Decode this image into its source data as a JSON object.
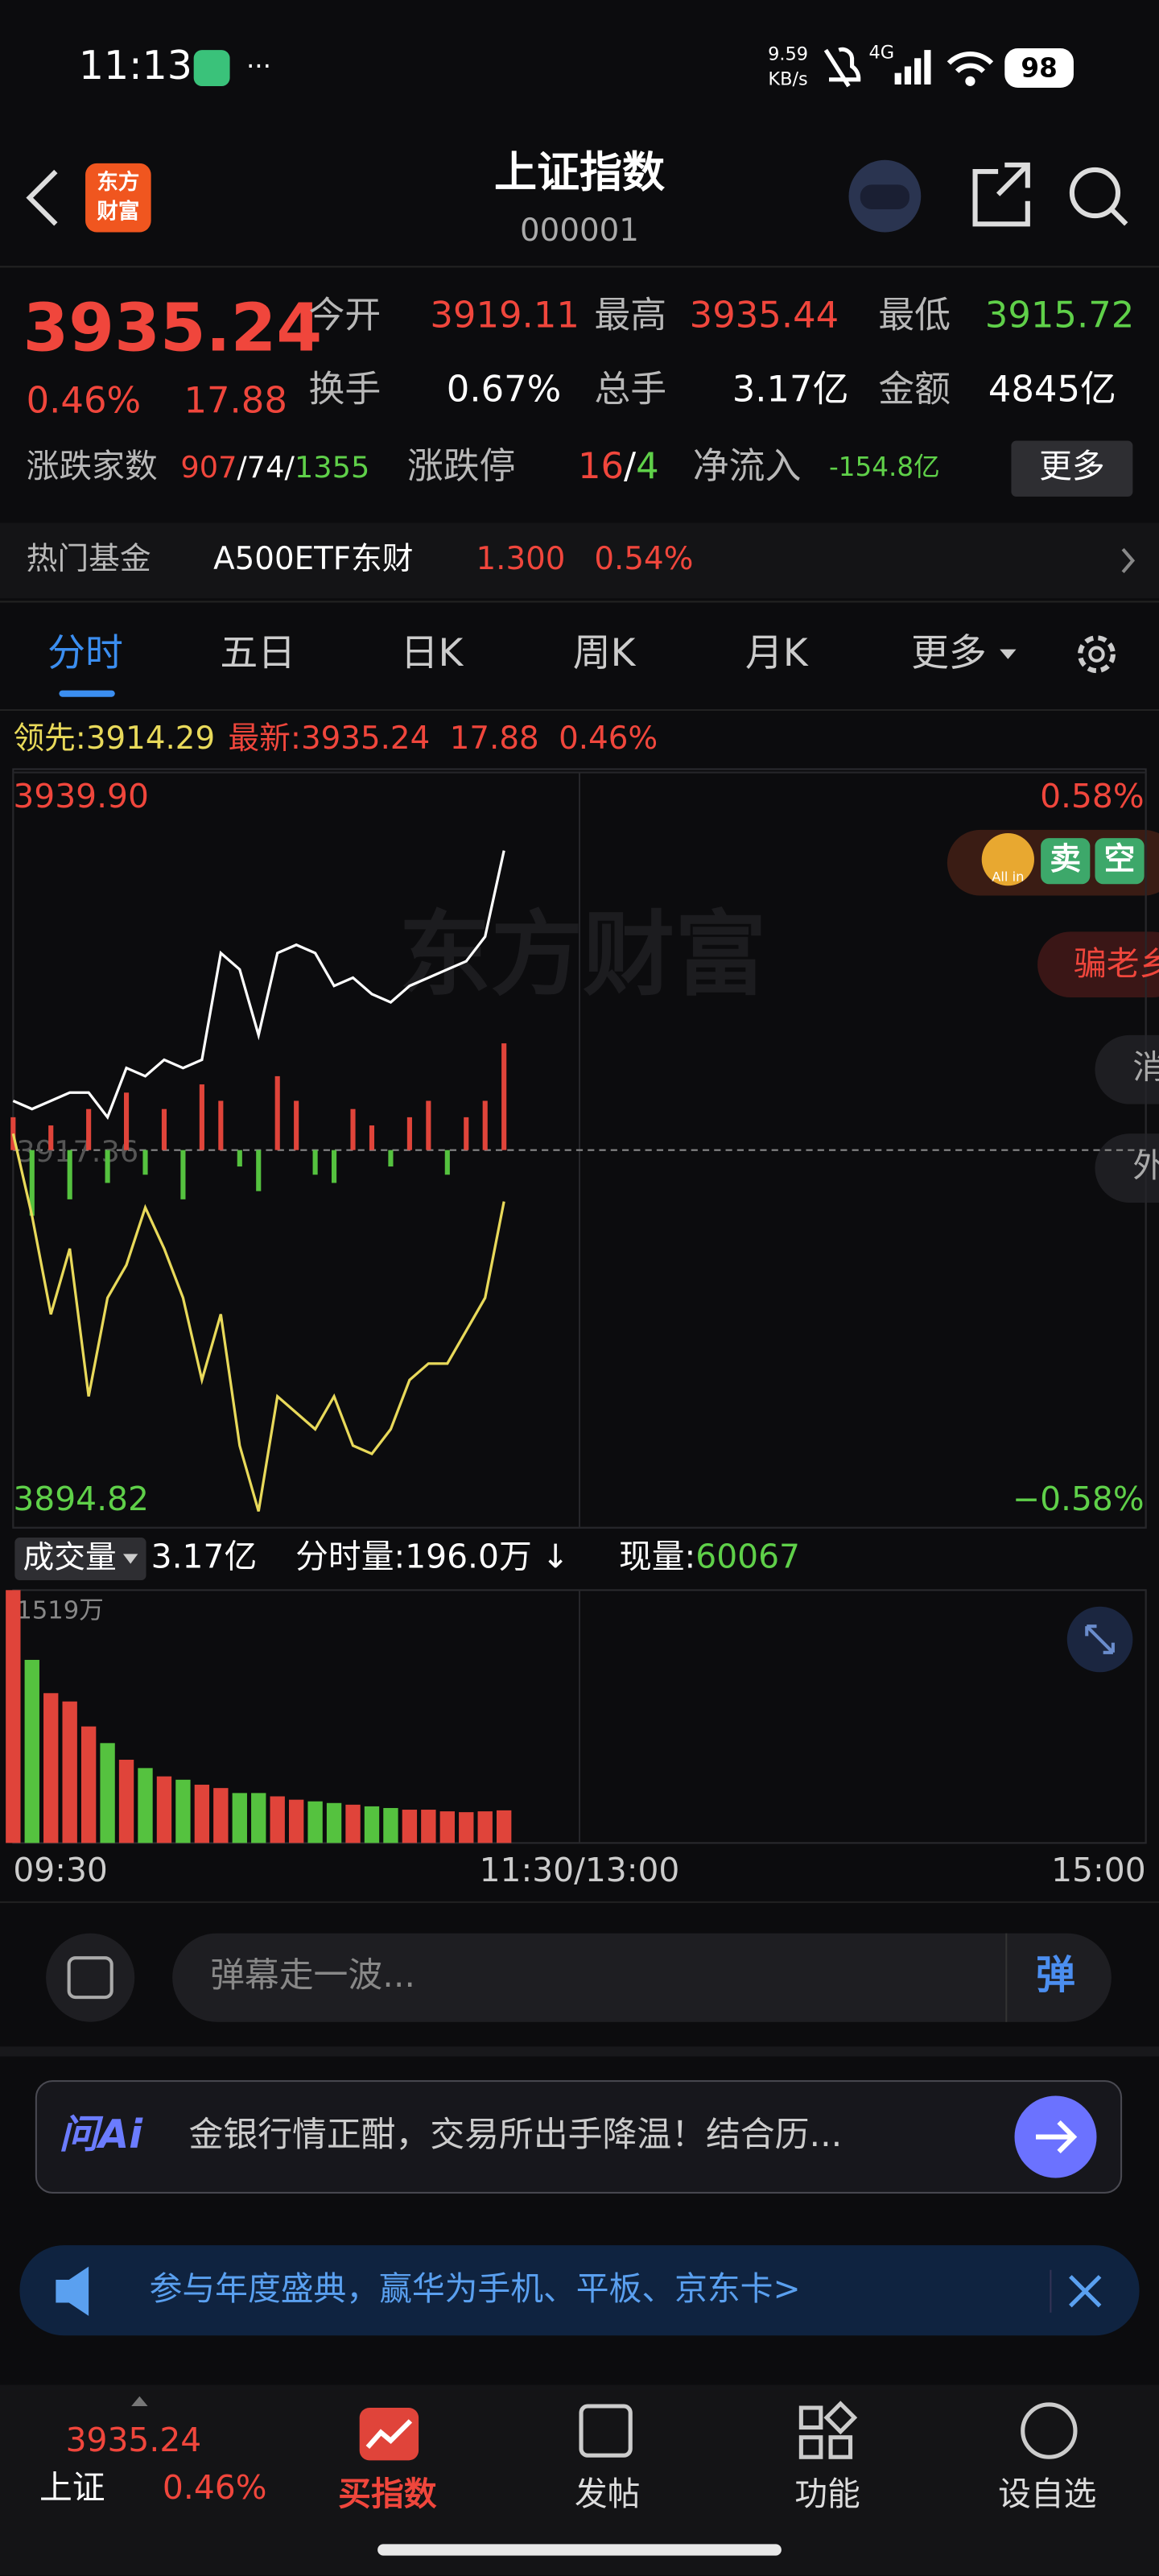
{
  "status": {
    "time": "11:13",
    "speed": "9.59",
    "speed_unit": "KB/s",
    "network": "4G",
    "battery": "98"
  },
  "header": {
    "logo_top": "东方",
    "logo_bottom": "财富",
    "title": "上证指数",
    "code": "000001"
  },
  "quote": {
    "price": "3935.24",
    "change_pct": "0.46%",
    "change": "17.88",
    "stats": [
      {
        "label": "今开",
        "value": "3919.11",
        "color": "#f0463c"
      },
      {
        "label": "最高",
        "value": "3935.44",
        "color": "#f0463c"
      },
      {
        "label": "最低",
        "value": "3915.72",
        "color": "#5fd049"
      },
      {
        "label": "换手",
        "value": "0.67%",
        "color": "#ffffff"
      },
      {
        "label": "总手",
        "value": "3.17亿",
        "color": "#ffffff"
      },
      {
        "label": "金额",
        "value": "4845亿",
        "color": "#ffffff"
      }
    ],
    "breadth_label": "涨跌家数",
    "up": "907",
    "separator": "/",
    "flat": "74",
    "down": "1355",
    "limit_label": "涨跌停",
    "limit_up": "16",
    "limit_down": "4",
    "netflow_label": "净流入",
    "netflow": "-154.8亿",
    "more": "更多"
  },
  "hot_fund": {
    "label": "热门基金",
    "name": "A500ETF东财",
    "price": "1.300",
    "change": "0.54%"
  },
  "tabs": [
    "分时",
    "五日",
    "日K",
    "周K",
    "月K",
    "更多"
  ],
  "legend": {
    "leading_label": "领先:",
    "leading": "3914.29",
    "latest_label": "最新:",
    "latest": "3935.24",
    "change": "17.88",
    "change_pct": "0.46%"
  },
  "watermark": "东方财富",
  "side": {
    "sell": "卖",
    "short": "空",
    "allin": "All in",
    "pill": "骗老乡",
    "news": "消",
    "outer": "外"
  },
  "chart": {
    "type": "line",
    "minutes": [
      0,
      4,
      8,
      12,
      16,
      20,
      24,
      28,
      32,
      36,
      40,
      44,
      48,
      52,
      56,
      60,
      64,
      68,
      72,
      76,
      80,
      84,
      88,
      92,
      96,
      100,
      104
    ],
    "price": {
      "color": "#ffffff",
      "values": [
        3920.3,
        3919.81,
        3920.3,
        3920.79,
        3920.79,
        3919.32,
        3922.26,
        3921.77,
        3922.75,
        3922.26,
        3922.75,
        3929.12,
        3928.14,
        3924.22,
        3929.12,
        3929.61,
        3929.12,
        3927.16,
        3927.65,
        3926.67,
        3926.18,
        3927.16,
        3927.65,
        3928.14,
        3928.63,
        3930.1,
        3935.24
      ]
    },
    "leading": {
      "color": "#e8d95a",
      "values": [
        3918.34,
        3913.44,
        3907.56,
        3911.48,
        3902.66,
        3908.54,
        3910.5,
        3913.93,
        3911.48,
        3908.54,
        3903.64,
        3907.56,
        3899.72,
        3895.8,
        3902.66,
        3901.68,
        3900.7,
        3902.66,
        3899.72,
        3899.23,
        3900.7,
        3903.64,
        3904.62,
        3904.62,
        3906.58,
        3908.54,
        3914.29
      ]
    },
    "flow": {
      "values": [
        20,
        -40,
        15,
        -30,
        25,
        -20,
        35,
        -15,
        25,
        -30,
        40,
        30,
        -10,
        -25,
        45,
        30,
        -15,
        -20,
        25,
        15,
        -10,
        20,
        30,
        -15,
        20,
        30,
        65
      ]
    },
    "flow_lim": [
      -230,
      230
    ],
    "xlim": [
      0,
      240
    ],
    "xticks": [
      {
        "value": 0,
        "label": "09:30"
      },
      {
        "value": 120,
        "label": "11:30/13:00"
      },
      {
        "value": 240,
        "label": "15:00"
      }
    ],
    "ylim": [
      3894.82,
      3939.9
    ],
    "yticks": [
      {
        "value": 3894.82,
        "label": "3894.82"
      },
      {
        "value": 3917.36,
        "label": "3917.36"
      },
      {
        "value": 3939.9,
        "label": "3939.90"
      }
    ],
    "y2lim": [
      -0.58,
      0.58
    ],
    "y2ticks": [
      {
        "value": -0.58,
        "label": "−0.58%"
      },
      {
        "value": 0.58,
        "label": "0.58%"
      }
    ],
    "up_color": "#e0443a",
    "down_color": "#55c23f",
    "volume": {
      "label": "成交量",
      "total": "3.17亿",
      "minute": "分时量:196.0万",
      "trend": "↓",
      "current_label": "现量:",
      "current": "60067",
      "max_label": "1519万",
      "ylim": [
        0,
        1519
      ],
      "values": [
        1519,
        1100,
        900,
        850,
        700,
        600,
        500,
        450,
        400,
        380,
        350,
        330,
        300,
        300,
        280,
        260,
        250,
        240,
        230,
        220,
        210,
        200,
        200,
        190,
        185,
        190,
        196
      ]
    }
  },
  "danmaku": {
    "placeholder": "弹幕走一波...",
    "button": "弹"
  },
  "ai": {
    "logo": "问Ai",
    "text": "金银行情正酣，交易所出手降温！结合历..."
  },
  "banner": {
    "text": "参与年度盛典，赢华为手机、平板、京东卡>"
  },
  "nav": {
    "index_price": "3935.24",
    "index_name": "上证",
    "index_change": "0.46%",
    "items": [
      "买指数",
      "发帖",
      "功能",
      "设自选"
    ]
  }
}
